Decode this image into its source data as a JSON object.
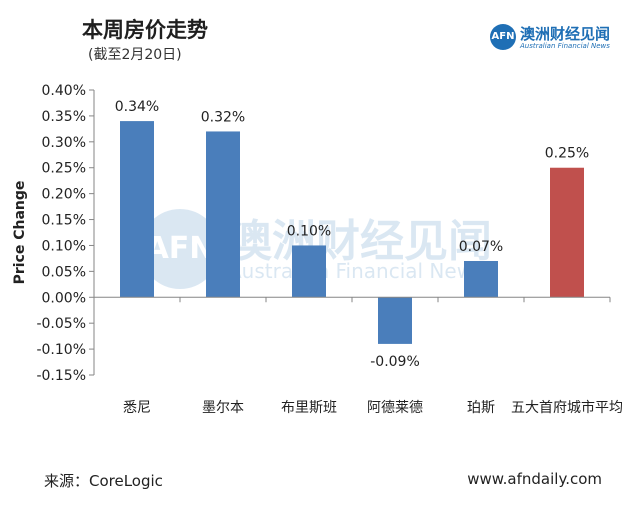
{
  "header": {
    "title": "本周房价走势",
    "subtitle": "(截至2月20日)"
  },
  "logo": {
    "mark": "AFN",
    "name_cn": "澳洲财经见闻",
    "name_en": "Australian Financial News"
  },
  "footer": {
    "source": "来源：CoreLogic",
    "website": "www.afndaily.com"
  },
  "colors": {
    "bar_default": "#4a7ebb",
    "bar_highlight": "#c0504d",
    "axis": "#868686"
  },
  "chart_data": {
    "type": "bar",
    "ylabel": "Price Change",
    "ylim": [
      -0.15,
      0.4
    ],
    "yticks": [
      0.4,
      0.35,
      0.3,
      0.25,
      0.2,
      0.15,
      0.1,
      0.05,
      0.0,
      -0.05,
      -0.1,
      -0.15
    ],
    "ytick_labels": [
      "0.40%",
      "0.35%",
      "0.30%",
      "0.25%",
      "0.20%",
      "0.15%",
      "0.10%",
      "0.05%",
      "0.00%",
      "-0.05%",
      "-0.10%",
      "-0.15%"
    ],
    "categories": [
      "悉尼",
      "墨尔本",
      "布里斯班",
      "阿德莱德",
      "珀斯",
      "五大首府城市平均"
    ],
    "values": [
      0.34,
      0.32,
      0.1,
      -0.09,
      0.07,
      0.25
    ],
    "data_labels": [
      "0.34%",
      "0.32%",
      "0.10%",
      "-0.09%",
      "0.07%",
      "0.25%"
    ],
    "highlight": [
      false,
      false,
      false,
      false,
      false,
      true
    ],
    "grid": false,
    "legend": "none"
  }
}
